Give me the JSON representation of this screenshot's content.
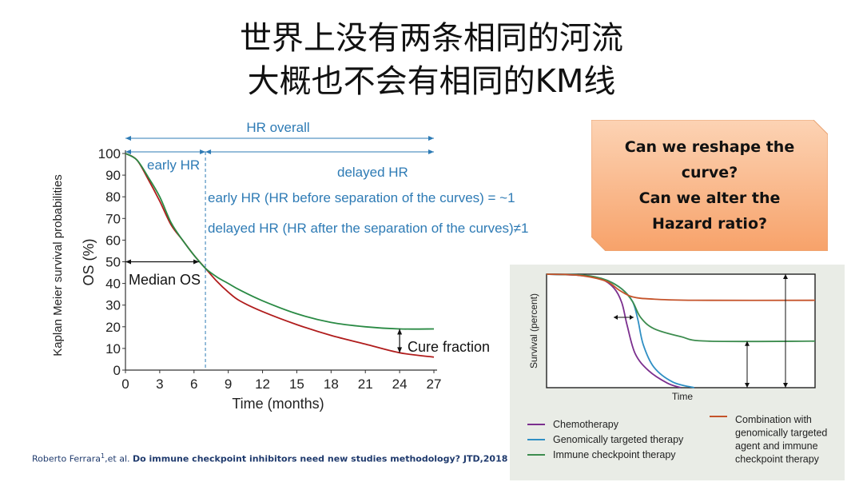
{
  "slide": {
    "title_line1": "世界上没有两条相同的河流",
    "title_line2": "大概也不会有相同的KM线",
    "callout": [
      "Can we reshape the",
      "curve?",
      "Can we alter the",
      "Hazard ratio?"
    ],
    "citation_authors": "Roberto Ferrara",
    "citation_sup": "1",
    "citation_etal": ",et al.",
    "citation_title": "Do immune checkpoint inhibitors need new studies methodology? JTD,2018"
  },
  "colors": {
    "blue_annot": "#2e7bb5",
    "red_curve": "#b01c1c",
    "green_curve": "#2a8a44",
    "callout_fill_top": "#fcd3b4",
    "callout_fill_bottom": "#f7a26a",
    "chemo": "#7b2f8e",
    "targeted": "#2f8fc4",
    "immune": "#3c8c4e",
    "combination": "#c5532a"
  },
  "chart_data": [
    {
      "type": "line",
      "outer_label": "Kaplan Meier survival probabilities",
      "ylabel": "OS (%)",
      "xlabel": "Time (months)",
      "xticks": [
        0,
        3,
        6,
        9,
        12,
        15,
        18,
        21,
        24,
        27
      ],
      "yticks": [
        0,
        10,
        20,
        30,
        40,
        50,
        60,
        70,
        80,
        90,
        100
      ],
      "xlim": [
        0,
        27
      ],
      "ylim": [
        0,
        100
      ],
      "series": [
        {
          "color_key": "red_curve",
          "x": [
            0,
            1,
            2,
            3,
            4,
            5,
            6,
            7,
            8,
            9,
            10,
            12,
            15,
            18,
            21,
            24,
            27
          ],
          "y": [
            100,
            97,
            88,
            78,
            67,
            60,
            53,
            47,
            41,
            36,
            32,
            27,
            21,
            16,
            12,
            8,
            6
          ]
        },
        {
          "color_key": "green_curve",
          "x": [
            0,
            1,
            2,
            3,
            4,
            5,
            6,
            7,
            8,
            9,
            10,
            12,
            15,
            18,
            21,
            24,
            27
          ],
          "y": [
            100,
            97,
            89,
            80,
            68,
            60,
            53,
            47,
            43,
            40,
            37,
            32,
            26,
            22,
            20,
            19,
            19
          ]
        }
      ],
      "annotations": {
        "hr_overall": "HR overall",
        "early_hr": "early HR",
        "delayed_hr": "delayed HR",
        "early_def": "early HR (HR before separation of the curves) = ~1",
        "delayed_def": "delayed HR (HR after the separation of the curves)≠1",
        "median_os": "Median OS",
        "cure_fraction": "Cure fraction",
        "separation_month": 7,
        "median_y": 50
      }
    },
    {
      "type": "line",
      "ylabel": "Survival (percent)",
      "xlabel": "Time",
      "series": [
        {
          "name": "Chemotherapy",
          "color_key": "chemo",
          "x": [
            0,
            0.12,
            0.2,
            0.25,
            0.28,
            0.3,
            0.33,
            0.38,
            0.45,
            0.5
          ],
          "y": [
            100,
            99,
            96,
            88,
            75,
            55,
            30,
            15,
            4,
            0
          ]
        },
        {
          "name": "Genomically targeted therapy",
          "color_key": "targeted",
          "x": [
            0,
            0.14,
            0.22,
            0.28,
            0.32,
            0.34,
            0.36,
            0.4,
            0.47,
            0.55
          ],
          "y": [
            100,
            99,
            95,
            87,
            76,
            60,
            38,
            18,
            5,
            0
          ]
        },
        {
          "name": "Immune checkpoint therapy",
          "color_key": "immune",
          "x": [
            0,
            0.14,
            0.22,
            0.28,
            0.32,
            0.35,
            0.4,
            0.5,
            0.6,
            1.0
          ],
          "y": [
            100,
            99,
            95,
            87,
            76,
            62,
            52,
            45,
            41,
            41
          ]
        },
        {
          "name": "Combination with genomically targeted agent and immune checkpoint therapy",
          "color_key": "combination",
          "x": [
            0,
            0.12,
            0.22,
            0.27,
            0.32,
            0.4,
            0.55,
            1.0
          ],
          "y": [
            100,
            99,
            94,
            86,
            80,
            78,
            77,
            77
          ]
        }
      ],
      "legend": {
        "left": [
          "Chemotherapy",
          "Genomically targeted therapy",
          "Immune checkpoint therapy"
        ],
        "right": [
          "Combination with",
          "genomically targeted",
          "agent and immune",
          "checkpoint therapy"
        ]
      }
    }
  ]
}
